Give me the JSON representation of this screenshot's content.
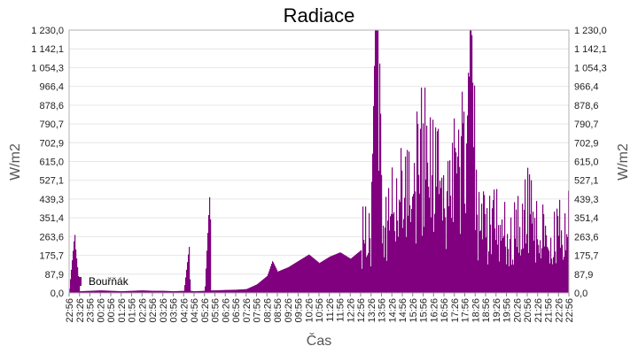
{
  "chart_data": {
    "type": "bar",
    "title": "Radiace",
    "xlabel": "Čas",
    "ylabel_left": "W/m2",
    "ylabel_right": "W/m2",
    "ylim": [
      0,
      1230
    ],
    "y_ticks": [
      "0,0",
      "87,9",
      "175,7",
      "263,6",
      "351,4",
      "439,3",
      "527,1",
      "615,0",
      "702,9",
      "790,7",
      "878,6",
      "966,4",
      "1 054,3",
      "1 142,1",
      "1 230,0"
    ],
    "x_ticks": [
      "22:56",
      "23:26",
      "23:56",
      "00:26",
      "00:56",
      "01:26",
      "01:56",
      "02:26",
      "02:56",
      "03:26",
      "03:56",
      "04:26",
      "04:56",
      "05:26",
      "05:56",
      "06:26",
      "06:56",
      "07:26",
      "07:56",
      "08:26",
      "08:56",
      "09:26",
      "09:56",
      "10:26",
      "10:56",
      "11:26",
      "11:56",
      "12:26",
      "12:56",
      "13:26",
      "13:56",
      "14:26",
      "14:56",
      "15:26",
      "15:56",
      "16:26",
      "16:56",
      "17:26",
      "17:56",
      "18:26",
      "18:56",
      "19:26",
      "19:56",
      "20:26",
      "20:56",
      "21:26",
      "21:56",
      "22:26",
      "22:56"
    ],
    "grid": true,
    "legend_position": "bottom-left",
    "series": [
      {
        "name": "Bouřňák",
        "color": "#800080",
        "profile": [
          [
            0,
            20
          ],
          [
            0.5,
            280
          ],
          [
            0.6,
            200
          ],
          [
            1,
            8
          ],
          [
            2,
            10
          ],
          [
            3,
            12
          ],
          [
            4,
            10
          ],
          [
            5,
            8
          ],
          [
            6,
            10
          ],
          [
            7,
            12
          ],
          [
            8,
            10
          ],
          [
            9,
            10
          ],
          [
            10,
            8
          ],
          [
            11,
            10
          ],
          [
            11.5,
            220
          ],
          [
            11.6,
            10
          ],
          [
            12,
            8
          ],
          [
            13,
            10
          ],
          [
            13.5,
            500
          ],
          [
            13.6,
            12
          ],
          [
            14,
            12
          ],
          [
            15,
            14
          ],
          [
            16,
            15
          ],
          [
            17,
            18
          ],
          [
            18,
            40
          ],
          [
            19,
            80
          ],
          [
            19.5,
            150
          ],
          [
            20,
            100
          ],
          [
            21,
            120
          ],
          [
            22,
            150
          ],
          [
            23,
            180
          ],
          [
            24,
            140
          ],
          [
            25,
            170
          ],
          [
            26,
            190
          ],
          [
            27,
            160
          ],
          [
            28,
            200
          ],
          [
            29,
            230
          ],
          [
            29.5,
            1230
          ],
          [
            30,
            260
          ],
          [
            31,
            300
          ],
          [
            32,
            450
          ],
          [
            33,
            400
          ],
          [
            34,
            520
          ],
          [
            35,
            480
          ],
          [
            36,
            350
          ],
          [
            37,
            550
          ],
          [
            38,
            450
          ],
          [
            38.5,
            1230
          ],
          [
            39,
            300
          ],
          [
            40,
            250
          ],
          [
            41,
            300
          ],
          [
            42,
            200
          ],
          [
            43,
            250
          ],
          [
            44,
            300
          ],
          [
            45,
            250
          ],
          [
            46,
            200
          ],
          [
            47,
            220
          ],
          [
            48,
            250
          ]
        ]
      }
    ]
  }
}
